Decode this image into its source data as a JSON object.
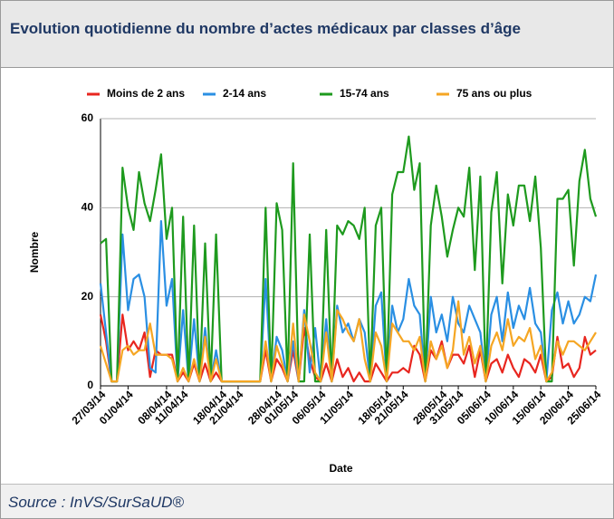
{
  "chart_data": {
    "type": "line",
    "title": "Evolution quotidienne du nombre d’actes médicaux par classes d’âge",
    "source": "Source : InVS/SurSaUD®",
    "x_label": "Date",
    "y_label": "Nombre",
    "categories": [
      "27/03/14",
      null,
      null,
      null,
      null,
      "01/04/14",
      null,
      null,
      null,
      null,
      null,
      null,
      "08/04/14",
      null,
      null,
      "11/04/14",
      null,
      null,
      null,
      null,
      null,
      null,
      "18/04/14",
      null,
      null,
      "21/04/14",
      null,
      null,
      null,
      null,
      null,
      null,
      "28/04/14",
      null,
      null,
      "01/05/14",
      null,
      null,
      null,
      null,
      "06/05/14",
      null,
      null,
      null,
      null,
      "11/05/14",
      null,
      null,
      null,
      null,
      null,
      null,
      "18/05/14",
      null,
      null,
      "21/05/14",
      null,
      null,
      null,
      null,
      null,
      null,
      "28/05/14",
      null,
      null,
      "31/05/14",
      null,
      null,
      null,
      null,
      "05/06/14",
      null,
      null,
      null,
      null,
      "10/06/14",
      null,
      null,
      null,
      null,
      "15/06/14",
      null,
      null,
      null,
      null,
      "20/06/14",
      null,
      null,
      null,
      null,
      "25/06/14"
    ],
    "series": [
      {
        "name": "Moins de 2 ans",
        "color": "#e8261f",
        "values": [
          16,
          10,
          1,
          1,
          16,
          8,
          10,
          8,
          12,
          2,
          8,
          7,
          7,
          7,
          1,
          3,
          1,
          5,
          1,
          5,
          1,
          3,
          1,
          1,
          1,
          1,
          1,
          1,
          1,
          1,
          8,
          1,
          6,
          4,
          1,
          8,
          1,
          13,
          6,
          2,
          1,
          5,
          1,
          6,
          2,
          4,
          1,
          3,
          1,
          1,
          5,
          3,
          1,
          3,
          3,
          4,
          3,
          9,
          7,
          1,
          8,
          6,
          10,
          4,
          7,
          7,
          5,
          9,
          2,
          8,
          1,
          5,
          6,
          3,
          7,
          4,
          2,
          6,
          5,
          3,
          7,
          1,
          2,
          11,
          4,
          5,
          2,
          4,
          11,
          7,
          8
        ]
      },
      {
        "name": "2-14 ans",
        "color": "#2a8fe3",
        "values": [
          23,
          12,
          1,
          1,
          34,
          17,
          24,
          25,
          20,
          4,
          3,
          37,
          18,
          24,
          1,
          17,
          1,
          15,
          1,
          13,
          1,
          8,
          1,
          1,
          1,
          1,
          1,
          1,
          1,
          1,
          24,
          1,
          11,
          8,
          1,
          10,
          1,
          17,
          3,
          13,
          1,
          15,
          1,
          18,
          12,
          14,
          10,
          15,
          12,
          1,
          18,
          21,
          1,
          18,
          12,
          15,
          24,
          18,
          16,
          1,
          20,
          12,
          16,
          10,
          20,
          14,
          12,
          18,
          15,
          12,
          1,
          16,
          20,
          10,
          21,
          13,
          18,
          15,
          22,
          14,
          12,
          1,
          17,
          21,
          14,
          19,
          14,
          16,
          20,
          19,
          25
        ]
      },
      {
        "name": "15-74 ans",
        "color": "#1e9a1e",
        "values": [
          32,
          33,
          1,
          1,
          49,
          40,
          35,
          48,
          41,
          37,
          44,
          52,
          33,
          40,
          1,
          38,
          1,
          36,
          1,
          32,
          1,
          34,
          1,
          1,
          1,
          1,
          1,
          1,
          1,
          1,
          40,
          1,
          41,
          35,
          1,
          50,
          1,
          1,
          34,
          1,
          1,
          35,
          1,
          36,
          34,
          37,
          36,
          33,
          40,
          1,
          36,
          40,
          1,
          43,
          48,
          48,
          56,
          44,
          50,
          1,
          36,
          45,
          38,
          29,
          35,
          40,
          38,
          49,
          26,
          47,
          1,
          39,
          48,
          23,
          43,
          36,
          45,
          45,
          37,
          47,
          31,
          1,
          1,
          42,
          42,
          44,
          27,
          46,
          53,
          42,
          38
        ]
      },
      {
        "name": "75 ans ou plus",
        "color": "#f5a623",
        "values": [
          9,
          5,
          1,
          1,
          8,
          9,
          7,
          8,
          8,
          14,
          7,
          7,
          7,
          6,
          1,
          4,
          1,
          6,
          1,
          11,
          1,
          6,
          1,
          1,
          1,
          1,
          1,
          1,
          1,
          1,
          10,
          1,
          9,
          5,
          1,
          14,
          1,
          16,
          10,
          3,
          1,
          12,
          1,
          17,
          15,
          12,
          10,
          15,
          6,
          1,
          12,
          9,
          1,
          14,
          12,
          10,
          10,
          8,
          11,
          1,
          10,
          6,
          9,
          4,
          8,
          19,
          7,
          11,
          5,
          9,
          1,
          9,
          12,
          8,
          15,
          9,
          11,
          10,
          13,
          6,
          9,
          1,
          3,
          10,
          7,
          10,
          10,
          9,
          8,
          10,
          12
        ]
      }
    ],
    "ylim": [
      0,
      60
    ],
    "yticks": [
      0,
      20,
      40,
      60
    ],
    "grid": true,
    "legend": "top"
  }
}
